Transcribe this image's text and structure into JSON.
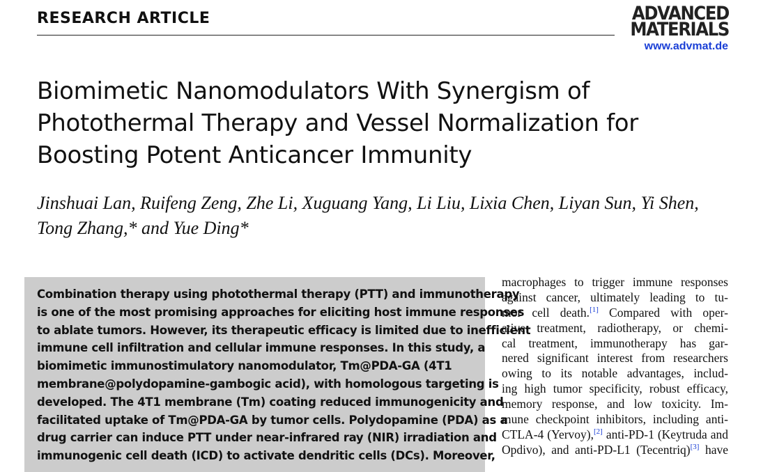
{
  "header": {
    "section": "RESEARCH ARTICLE",
    "journal_logo": "ADVANCED MATERIALS",
    "journal_logo_lines": [
      "ADVANCED",
      "MATERIALS"
    ],
    "url": "www.advmat.de",
    "colors": {
      "link": "#1a3fd6",
      "abstract_bg": "#cccccc"
    }
  },
  "article": {
    "title_lines": [
      "Biomimetic Nanomodulators With Synergism of",
      "Photothermal Therapy and Vessel Normalization for",
      "Boosting Potent Anticancer Immunity"
    ],
    "author_lines": [
      "Jinshuai Lan, Ruifeng Zeng, Zhe Li, Xuguang Yang, Li Liu, Lixia Chen, Liyan Sun, Yi Shen,",
      "Tong Zhang,* and Yue Ding*"
    ],
    "abstract_lines": [
      "Combination therapy using photothermal therapy (PTT) and immunotherapy",
      "is one of the most promising approaches for eliciting host immune responses",
      "to ablate tumors. However, its therapeutic efficacy is limited due to inefficient",
      "immune cell infiltration and cellular immune responses. In this study, a",
      "biomimetic immunostimulatory nanomodulator, Tm@PDA-GA (4T1",
      "membrane@polydopamine-gambogic acid), with homologous targeting is",
      "developed. The 4T1 membrane (Tm) coating reduced immunogenicity and",
      "facilitated uptake of Tm@PDA-GA by tumor cells. Polydopamine (PDA) as a",
      "drug carrier can induce PTT under near-infrared ray (NIR) irradiation and",
      "immunogenic cell death (ICD) to activate dendritic cells (DCs). Moreover,"
    ],
    "body_lines": [
      {
        "text": "macrophages to trigger immune responses"
      },
      {
        "text": "against cancer, ultimately leading to tu-"
      },
      {
        "text": "mor cell death.",
        "ref": "[1]",
        "after": " Compared with oper-"
      },
      {
        "text": "ative treatment, radiotherapy, or chemi-"
      },
      {
        "text": "cal treatment, immunotherapy has gar-"
      },
      {
        "text": "nered significant interest from researchers"
      },
      {
        "text": "owing to its notable advantages, includ-"
      },
      {
        "text": "ing high tumor specificity, robust efficacy,"
      },
      {
        "text": "memory response, and low toxicity. Im-"
      },
      {
        "text": "mune checkpoint inhibitors, including anti-"
      },
      {
        "text": "CTLA-4 (Yervoy),",
        "ref": "[2]",
        "after": " anti-PD-1 (Keytruda and"
      },
      {
        "text": "Opdivo), and anti-PD-L1 (Tecentriq)",
        "ref": "[3]",
        "after": " have"
      }
    ]
  }
}
